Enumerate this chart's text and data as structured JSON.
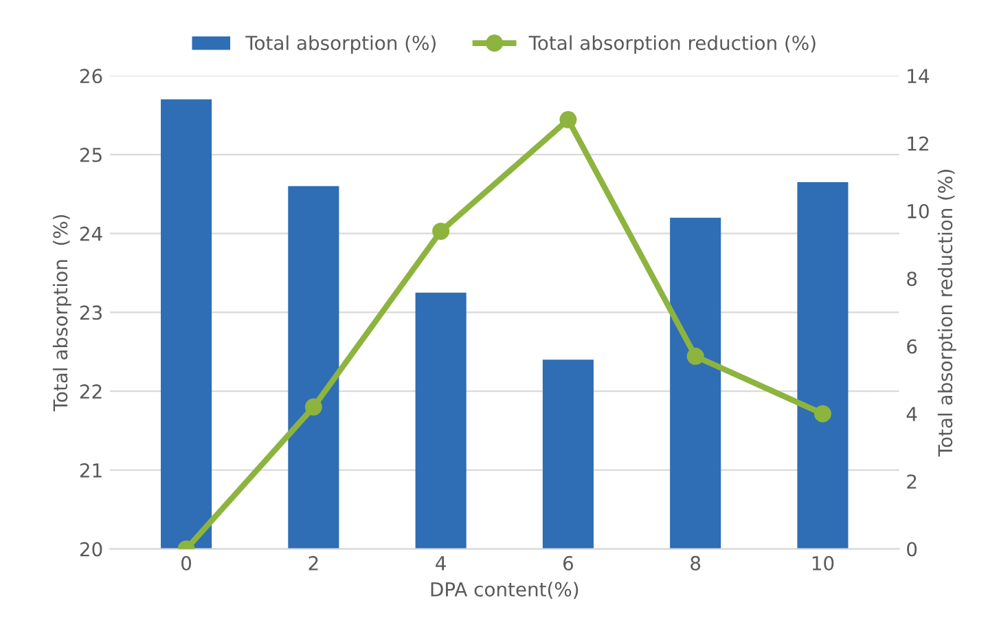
{
  "chart_data": {
    "type": "bar",
    "categories": [
      "0",
      "2",
      "4",
      "6",
      "8",
      "10"
    ],
    "xlabel": "DPA content(%)",
    "ylabel": "Total absorption  (%)",
    "y2label": "Total absorption reduction (%)",
    "series": [
      {
        "name": "Total absorption (%)",
        "color": "#2f6db5",
        "values": [
          25.7,
          24.6,
          23.25,
          22.4,
          24.2,
          24.65
        ]
      },
      {
        "name": "Total absorption reduction (%)",
        "type": "line",
        "axis": "y2",
        "color": "#8db43e",
        "marker": "circle",
        "values": [
          0,
          4.2,
          9.4,
          12.7,
          5.7,
          4.0
        ]
      }
    ],
    "ylim": [
      20,
      26
    ],
    "yticks": [
      20,
      21,
      22,
      23,
      24,
      25,
      26
    ],
    "y2lim": [
      0,
      14
    ],
    "y2ticks": [
      0,
      2,
      4,
      6,
      8,
      10,
      12,
      14
    ],
    "grid": "y",
    "legend": "top"
  }
}
